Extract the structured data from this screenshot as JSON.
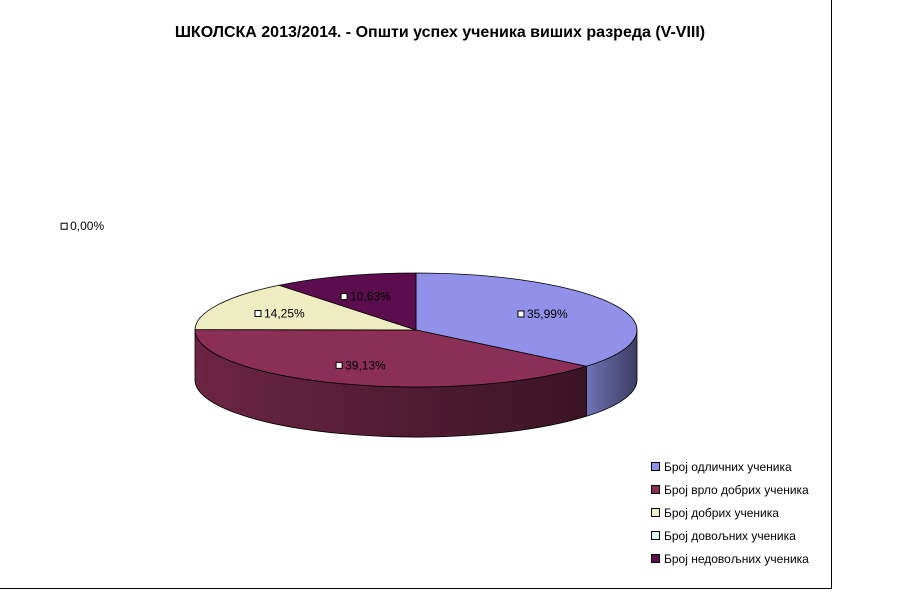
{
  "chart_data": {
    "type": "pie",
    "title": "ШКОЛСКА 2013/2014. - Општи успех ученика виших разреда (V-VIII)",
    "unit": "%",
    "legend_position": "bottom-right",
    "three_d": true,
    "slices": [
      {
        "name": "Број одличних ученика",
        "value": 35.99,
        "label": "35,99%",
        "color": "#9191ea"
      },
      {
        "name": "Број врло добрих ученика",
        "value": 39.13,
        "label": "39,13%",
        "color": "#8b2f56"
      },
      {
        "name": "Број добрих ученика",
        "value": 14.25,
        "label": "14,25%",
        "color": "#ededc1"
      },
      {
        "name": "Број довољних ученика",
        "value": 0.0,
        "label": "0,00%",
        "color": "#ddf3f3"
      },
      {
        "name": "Број недовољних ученика",
        "value": 10.63,
        "label": "10,63%",
        "color": "#5b0d4e"
      }
    ]
  }
}
